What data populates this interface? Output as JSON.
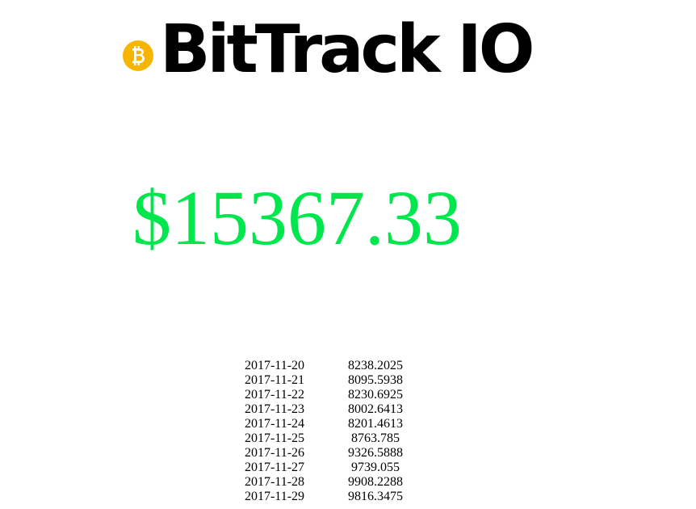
{
  "header": {
    "brand": "BitTrack IO",
    "logo_icon": "bitcoin-icon",
    "logo_color": "#f7b500"
  },
  "price": {
    "current": "$15367.33",
    "color": "#00e64d"
  },
  "history": [
    {
      "date": "2017-11-20",
      "value": "8238.2025"
    },
    {
      "date": "2017-11-21",
      "value": "8095.5938"
    },
    {
      "date": "2017-11-22",
      "value": "8230.6925"
    },
    {
      "date": "2017-11-23",
      "value": "8002.6413"
    },
    {
      "date": "2017-11-24",
      "value": "8201.4613"
    },
    {
      "date": "2017-11-25",
      "value": "8763.785"
    },
    {
      "date": "2017-11-26",
      "value": "9326.5888"
    },
    {
      "date": "2017-11-27",
      "value": "9739.055"
    },
    {
      "date": "2017-11-28",
      "value": "9908.2288"
    },
    {
      "date": "2017-11-29",
      "value": "9816.3475"
    }
  ]
}
